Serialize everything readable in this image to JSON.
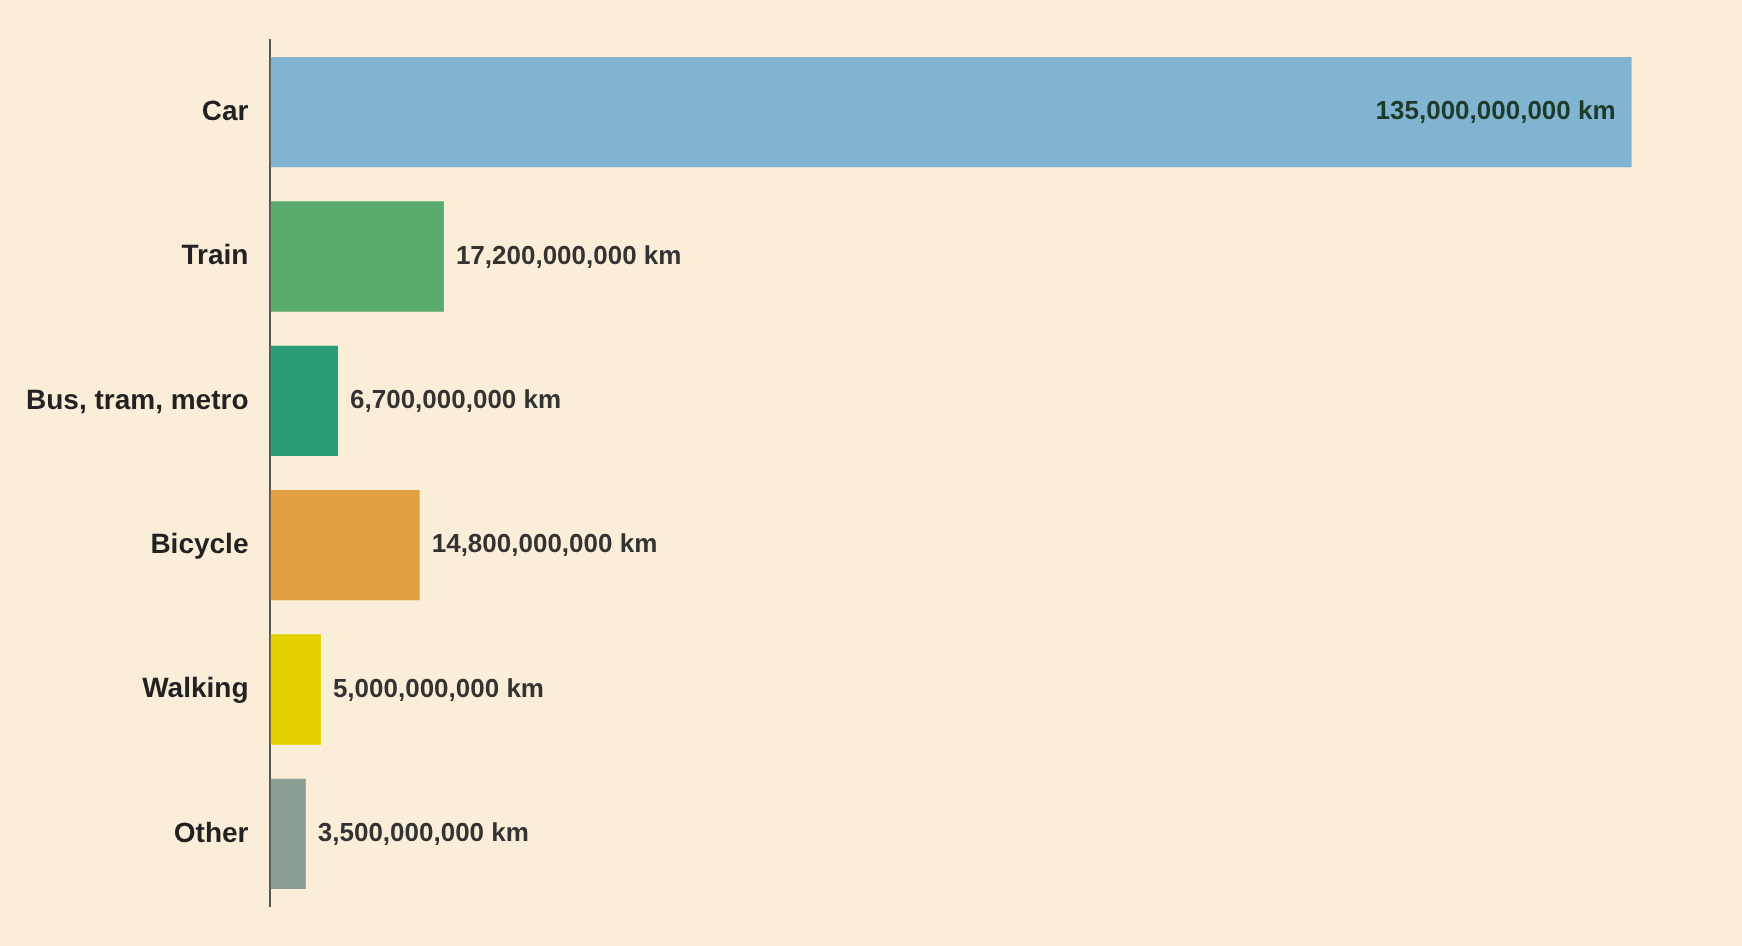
{
  "chart_data": {
    "type": "bar",
    "orientation": "horizontal",
    "tick_labels": "y",
    "grid": false,
    "legend": false,
    "categories": [
      "Car",
      "Train",
      "Bus, tram, metro",
      "Bicycle",
      "Walking",
      "Other"
    ],
    "values": [
      135000000000,
      17200000000,
      6700000000,
      14800000000,
      5000000000,
      3500000000
    ],
    "colors": [
      "#80b4d0",
      "#5aaa6e",
      "#2a9d78",
      "#e2a040",
      "#e3d000",
      "#8c9f92"
    ],
    "value_labels": [
      "135,000,000,000 km",
      "17,200,000,000 km",
      "6,700,000,000 km",
      "14,800,000,000 km",
      "5,000,000,000 km",
      "3,500,000,000 km"
    ]
  }
}
